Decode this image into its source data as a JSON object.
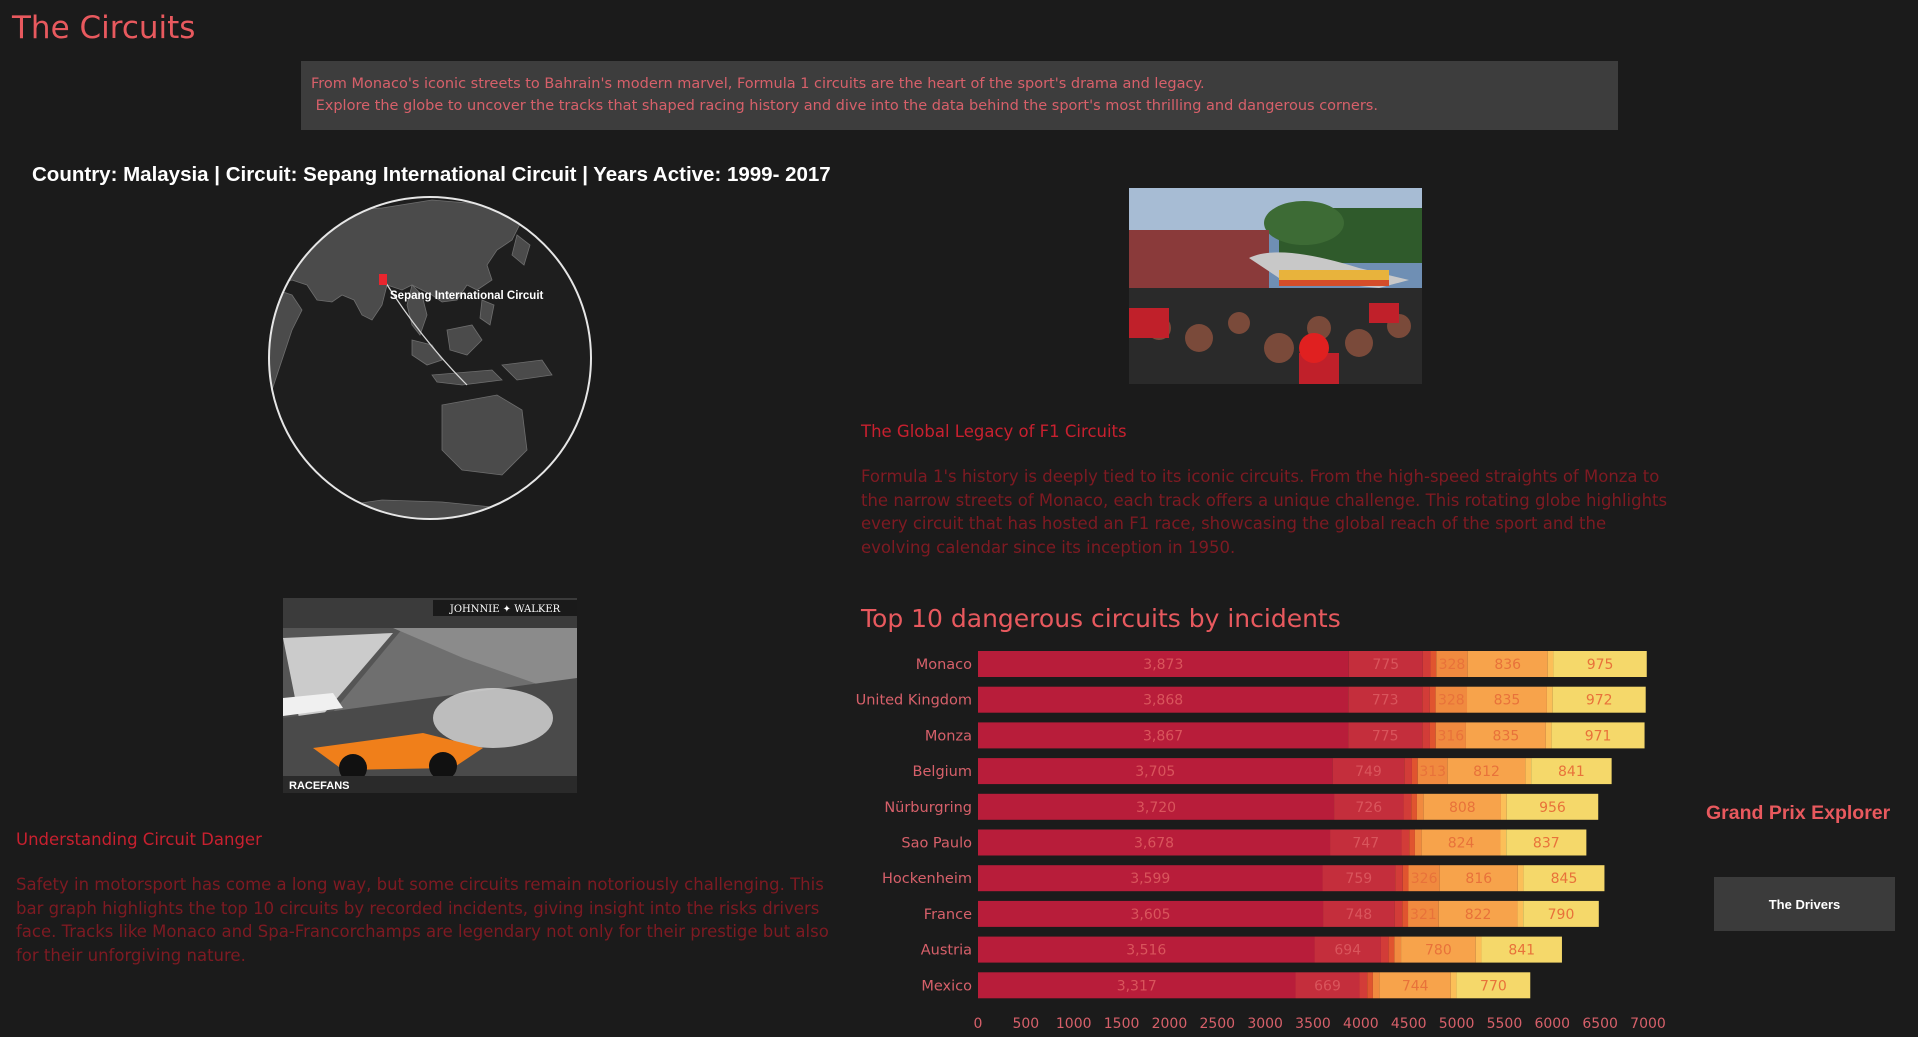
{
  "page": {
    "title": "The Circuits",
    "intro_line1": "From Monaco's iconic streets to Bahrain's modern marvel, Formula 1 circuits are the heart of the sport's drama and legacy.",
    "intro_line2": " Explore the globe to uncover the tracks that shaped racing history and dive into the data behind the sport's most thrilling and dangerous corners."
  },
  "globe": {
    "heading": "Country: Malaysia | Circuit: Sepang International Circuit | Years Active: 1999- 2017",
    "marker_label": "Sepang International Circuit",
    "marker_color": "#e8252e"
  },
  "legacy": {
    "title": "The Global Legacy of F1 Circuits",
    "body": "Formula 1's history is deeply tied to its iconic circuits. From the high-speed straights of Monza to the narrow streets of Monaco, each track offers a unique challenge. This rotating globe highlights every circuit that has hosted an F1 race, showcasing the global reach of the sport and the evolving calendar since its inception in 1950."
  },
  "danger": {
    "title": "Understanding Circuit Danger",
    "body": "Safety in motorsport has come a long way, but some circuits remain notoriously challenging. This bar graph highlights the top 10 circuits by recorded incidents, giving insight into the risks drivers face. Tracks like Monaco and Spa-Francorchamps are legendary not only for their prestige but also for their unforgiving nature."
  },
  "nav": {
    "explorer_title": "Grand Prix Explorer",
    "drivers_button": "The Drivers"
  },
  "colors": {
    "accent": "#e8595e",
    "seg_colors": [
      "#b81d3a",
      "#c42e3c",
      "#d23c38",
      "#e0542f",
      "#f08a3f",
      "#f7a34b",
      "#fbbf58",
      "#f5d86a"
    ]
  },
  "chart_data": {
    "type": "bar",
    "orientation": "horizontal",
    "stacked": true,
    "title": "Top 10 dangerous circuits by incidents",
    "categories": [
      "Monaco",
      "United Kingdom",
      "Monza",
      "Belgium",
      "Nürburgring",
      "Sao Paulo",
      "Hockenheim",
      "France",
      "Austria",
      "Mexico"
    ],
    "series": [
      {
        "values": [
          3873,
          3868,
          3867,
          3705,
          3720,
          3678,
          3599,
          3605,
          3516,
          3317
        ]
      },
      {
        "values": [
          775,
          773,
          775,
          749,
          726,
          747,
          759,
          748,
          694,
          669
        ]
      },
      {
        "values": [
          80,
          80,
          80,
          80,
          80,
          80,
          80,
          80,
          80,
          80
        ]
      },
      {
        "values": [
          60,
          60,
          60,
          60,
          60,
          60,
          60,
          60,
          60,
          60
        ]
      },
      {
        "values": [
          328,
          328,
          316,
          313,
          70,
          70,
          326,
          321,
          70,
          70
        ]
      },
      {
        "values": [
          836,
          835,
          835,
          812,
          808,
          824,
          816,
          822,
          780,
          744
        ]
      },
      {
        "values": [
          60,
          60,
          60,
          60,
          60,
          60,
          60,
          60,
          60,
          60
        ]
      },
      {
        "values": [
          975,
          972,
          971,
          841,
          956,
          837,
          845,
          790,
          841,
          770
        ]
      }
    ],
    "labels": [
      [
        "3,873",
        "775",
        "",
        "",
        "328",
        "836",
        "",
        "975"
      ],
      [
        "3,868",
        "773",
        "",
        "",
        "328",
        "835",
        "",
        "972"
      ],
      [
        "3,867",
        "775",
        "",
        "",
        "316",
        "835",
        "",
        "971"
      ],
      [
        "3,705",
        "749",
        "",
        "",
        "313",
        "812",
        "",
        "841"
      ],
      [
        "3,720",
        "726",
        "",
        "",
        "",
        "808",
        "",
        "956"
      ],
      [
        "3,678",
        "747",
        "",
        "",
        "",
        "824",
        "",
        "837"
      ],
      [
        "3,599",
        "759",
        "",
        "",
        "326",
        "816",
        "",
        "845"
      ],
      [
        "3,605",
        "748",
        "",
        "",
        "321",
        "822",
        "",
        "790"
      ],
      [
        "3,516",
        "694",
        "",
        "",
        "",
        "780",
        "",
        "841"
      ],
      [
        "3,317",
        "669",
        "",
        "",
        "",
        "744",
        "",
        "770"
      ]
    ],
    "xlim": [
      0,
      7000
    ],
    "xticks": [
      "0",
      "500",
      "1000",
      "1500",
      "2000",
      "2500",
      "3000",
      "3500",
      "4000",
      "4500",
      "5000",
      "5500",
      "6000",
      "6500",
      "7000"
    ],
    "grid": false,
    "legend": "none"
  }
}
